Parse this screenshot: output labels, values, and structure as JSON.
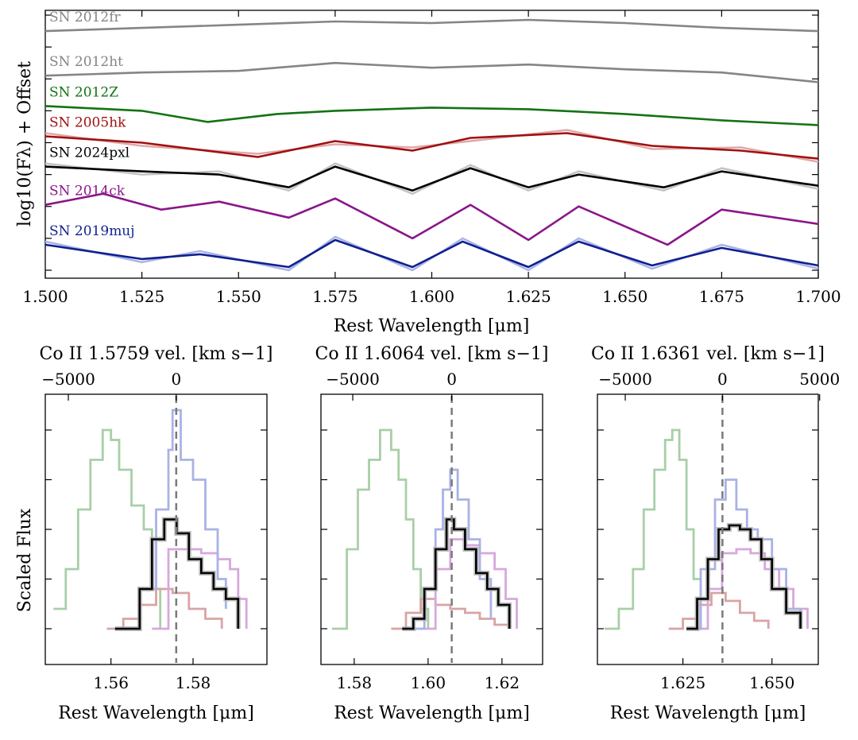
{
  "colors": {
    "SN 2012fr": "#858585",
    "SN 2012ht": "#858585",
    "SN 2012Z": "#147314",
    "SN 2005hk": "#a01010",
    "SN 2024pxl": "#000000",
    "SN 2014ck": "#8a168a",
    "SN 2019muj": "#0f1f8f",
    "SN 2024pxl_raw": "#c3c3c3",
    "SN 2005hk_raw": "#e0a8a8",
    "SN 2019muj_raw": "#a9b3e6",
    "panel_green": "#a8cfa8",
    "panel_blue": "#aab2e4",
    "panel_purple": "#d7a8dc",
    "panel_red": "#d9a4a4",
    "panel_gray": "#aeaeae",
    "rest_line": "#7a7a7a"
  },
  "chart_data": [
    {
      "type": "line",
      "panel": "top",
      "xlabel": "Rest Wavelength [μm]",
      "ylabel": "log10(Fλ) + Offset",
      "xlim": [
        1.5,
        1.7
      ],
      "xticks": [
        "1.500",
        "1.525",
        "1.550",
        "1.575",
        "1.600",
        "1.625",
        "1.650",
        "1.675",
        "1.700"
      ],
      "series": [
        {
          "name": "SN 2012fr",
          "x": [
            1.5,
            1.525,
            1.55,
            1.575,
            1.6,
            1.625,
            1.65,
            1.675,
            1.7
          ],
          "y": [
            0.0,
            0.02,
            0.04,
            0.06,
            0.05,
            0.07,
            0.05,
            0.02,
            0.0
          ]
        },
        {
          "name": "SN 2012ht",
          "x": [
            1.5,
            1.525,
            1.55,
            1.575,
            1.6,
            1.625,
            1.65,
            1.675,
            1.7
          ],
          "y": [
            -0.28,
            -0.26,
            -0.25,
            -0.2,
            -0.23,
            -0.21,
            -0.24,
            -0.26,
            -0.32
          ]
        },
        {
          "name": "SN 2012Z",
          "x": [
            1.5,
            1.525,
            1.542,
            1.56,
            1.575,
            1.6,
            1.625,
            1.65,
            1.675,
            1.7
          ],
          "y": [
            -0.47,
            -0.5,
            -0.57,
            -0.52,
            -0.5,
            -0.48,
            -0.49,
            -0.52,
            -0.56,
            -0.59
          ]
        },
        {
          "name": "SN 2005hk",
          "x": [
            1.5,
            1.525,
            1.555,
            1.575,
            1.595,
            1.61,
            1.635,
            1.657,
            1.68,
            1.7
          ],
          "y": [
            -0.66,
            -0.7,
            -0.79,
            -0.69,
            -0.75,
            -0.67,
            -0.64,
            -0.72,
            -0.75,
            -0.8
          ]
        },
        {
          "name": "SN 2024pxl",
          "x": [
            1.5,
            1.525,
            1.545,
            1.563,
            1.575,
            1.595,
            1.61,
            1.625,
            1.638,
            1.66,
            1.675,
            1.7
          ],
          "y": [
            -0.85,
            -0.88,
            -0.9,
            -0.98,
            -0.85,
            -1.0,
            -0.86,
            -0.98,
            -0.9,
            -0.98,
            -0.88,
            -0.97
          ]
        },
        {
          "name": "SN 2014ck",
          "x": [
            1.5,
            1.515,
            1.53,
            1.545,
            1.563,
            1.575,
            1.595,
            1.61,
            1.625,
            1.638,
            1.661,
            1.675,
            1.7
          ],
          "y": [
            -1.09,
            -1.02,
            -1.12,
            -1.07,
            -1.17,
            -1.05,
            -1.3,
            -1.09,
            -1.31,
            -1.1,
            -1.34,
            -1.12,
            -1.21
          ]
        },
        {
          "name": "SN 2019muj",
          "x": [
            1.5,
            1.525,
            1.54,
            1.563,
            1.575,
            1.595,
            1.608,
            1.625,
            1.638,
            1.657,
            1.675,
            1.7
          ],
          "y": [
            -1.34,
            -1.43,
            -1.4,
            -1.48,
            -1.31,
            -1.48,
            -1.32,
            -1.48,
            -1.32,
            -1.47,
            -1.36,
            -1.47
          ]
        }
      ],
      "labels": [
        "SN 2012fr",
        "SN 2012ht",
        "SN 2012Z",
        "SN 2005hk",
        "SN 2024pxl",
        "SN 2014ck",
        "SN 2019muj"
      ]
    },
    {
      "type": "line",
      "panel": "bottom-left",
      "title": "Co II 1.5759 vel. [km s−1]",
      "xlabel": "Rest Wavelength [μm]",
      "ylabel": "Scaled Flux",
      "xlim": [
        1.544,
        1.598
      ],
      "xticks": [
        "1.56",
        "1.58"
      ],
      "top_ticks": [
        "−5000",
        "0"
      ],
      "rest_wavelength": 1.5759,
      "series": [
        {
          "name": "SN 2012Z",
          "x": [
            1.546,
            1.549,
            1.552,
            1.555,
            1.558,
            1.56,
            1.562,
            1.565,
            1.568,
            1.57,
            1.572
          ],
          "y": [
            0.1,
            0.3,
            0.6,
            0.85,
            1.0,
            0.95,
            0.8,
            0.62,
            0.5,
            0.2,
            0.0
          ]
        },
        {
          "name": "SN 2019muj",
          "x": [
            1.563,
            1.567,
            1.571,
            1.574,
            1.575,
            1.577,
            1.58,
            1.583,
            1.586,
            1.588
          ],
          "y": [
            0.0,
            0.2,
            0.6,
            0.9,
            1.1,
            0.85,
            0.75,
            0.5,
            0.25,
            0.1
          ]
        },
        {
          "name": "SN 2014ck",
          "x": [
            1.57,
            1.574,
            1.578,
            1.582,
            1.586,
            1.589,
            1.591,
            1.593
          ],
          "y": [
            0.0,
            0.4,
            0.4,
            0.38,
            0.35,
            0.3,
            0.15,
            0.0
          ]
        },
        {
          "name": "SN 2005hk",
          "x": [
            1.559,
            1.563,
            1.567,
            1.571,
            1.575,
            1.579,
            1.583,
            1.587
          ],
          "y": [
            0.0,
            0.05,
            0.12,
            0.2,
            0.18,
            0.1,
            0.05,
            0.0
          ]
        },
        {
          "name": "SN 2024pxl",
          "x": [
            1.561,
            1.564,
            1.567,
            1.57,
            1.573,
            1.576,
            1.579,
            1.582,
            1.585,
            1.588,
            1.591
          ],
          "y": [
            0.0,
            0.0,
            0.2,
            0.45,
            0.55,
            0.48,
            0.35,
            0.28,
            0.2,
            0.15,
            0.0
          ]
        }
      ]
    },
    {
      "type": "line",
      "panel": "bottom-middle",
      "title": "Co II 1.6064 vel. [km s−1]",
      "xlabel": "Rest Wavelength [μm]",
      "xlim": [
        1.571,
        1.631
      ],
      "xticks": [
        "1.58",
        "1.60",
        "1.62"
      ],
      "top_ticks": [
        "−5000",
        "0"
      ],
      "rest_wavelength": 1.6064,
      "series": [
        {
          "name": "SN 2012Z",
          "x": [
            1.574,
            1.578,
            1.581,
            1.584,
            1.587,
            1.59,
            1.592,
            1.594,
            1.596,
            1.598,
            1.6
          ],
          "y": [
            0.0,
            0.4,
            0.7,
            0.85,
            1.0,
            0.9,
            0.75,
            0.55,
            0.3,
            0.1,
            0.0
          ]
        },
        {
          "name": "SN 2019muj",
          "x": [
            1.596,
            1.599,
            1.602,
            1.604,
            1.606,
            1.608,
            1.611,
            1.614,
            1.617
          ],
          "y": [
            0.0,
            0.2,
            0.5,
            0.7,
            0.8,
            0.65,
            0.45,
            0.25,
            0.05
          ]
        },
        {
          "name": "SN 2014ck",
          "x": [
            1.598,
            1.602,
            1.606,
            1.61,
            1.614,
            1.618,
            1.621,
            1.624
          ],
          "y": [
            0.0,
            0.3,
            0.45,
            0.42,
            0.38,
            0.3,
            0.15,
            0.0
          ]
        },
        {
          "name": "SN 2005hk",
          "x": [
            1.59,
            1.594,
            1.598,
            1.602,
            1.606,
            1.61,
            1.614,
            1.618,
            1.622
          ],
          "y": [
            0.0,
            0.08,
            0.15,
            0.12,
            0.1,
            0.08,
            0.05,
            0.02,
            0.0
          ]
        },
        {
          "name": "SN 2024pxl",
          "x": [
            1.593,
            1.596,
            1.599,
            1.602,
            1.605,
            1.607,
            1.61,
            1.613,
            1.616,
            1.619,
            1.622
          ],
          "y": [
            0.0,
            0.05,
            0.2,
            0.4,
            0.55,
            0.5,
            0.4,
            0.28,
            0.2,
            0.12,
            0.0
          ]
        }
      ]
    },
    {
      "type": "line",
      "panel": "bottom-right",
      "title": "Co II 1.6361 vel. [km s−1]",
      "xlabel": "Rest Wavelength [μm]",
      "xlim": [
        1.601,
        1.663
      ],
      "xticks": [
        "1.625",
        "1.650"
      ],
      "top_ticks": [
        "−5000",
        "0",
        "5000"
      ],
      "rest_wavelength": 1.6361,
      "series": [
        {
          "name": "SN 2012Z",
          "x": [
            1.603,
            1.607,
            1.611,
            1.614,
            1.617,
            1.62,
            1.622,
            1.624,
            1.626,
            1.628,
            1.63
          ],
          "y": [
            0.0,
            0.1,
            0.3,
            0.6,
            0.8,
            0.95,
            1.0,
            0.85,
            0.5,
            0.25,
            0.0
          ]
        },
        {
          "name": "SN 2019muj",
          "x": [
            1.627,
            1.63,
            1.634,
            1.637,
            1.64,
            1.643,
            1.646,
            1.65,
            1.654,
            1.658
          ],
          "y": [
            0.0,
            0.3,
            0.65,
            0.75,
            0.6,
            0.5,
            0.45,
            0.3,
            0.1,
            0.0
          ]
        },
        {
          "name": "SN 2014ck",
          "x": [
            1.628,
            1.632,
            1.636,
            1.64,
            1.644,
            1.648,
            1.652,
            1.656,
            1.66
          ],
          "y": [
            0.0,
            0.2,
            0.38,
            0.4,
            0.38,
            0.3,
            0.2,
            0.1,
            0.0
          ]
        },
        {
          "name": "SN 2005hk",
          "x": [
            1.621,
            1.625,
            1.629,
            1.633,
            1.637,
            1.641,
            1.645,
            1.649
          ],
          "y": [
            0.0,
            0.05,
            0.12,
            0.18,
            0.14,
            0.08,
            0.04,
            0.0
          ]
        },
        {
          "name": "SN 2024pxl",
          "x": [
            1.626,
            1.629,
            1.632,
            1.635,
            1.638,
            1.641,
            1.644,
            1.647,
            1.65,
            1.654,
            1.658
          ],
          "y": [
            0.0,
            0.15,
            0.35,
            0.5,
            0.52,
            0.5,
            0.45,
            0.35,
            0.2,
            0.08,
            0.0
          ]
        }
      ]
    }
  ]
}
